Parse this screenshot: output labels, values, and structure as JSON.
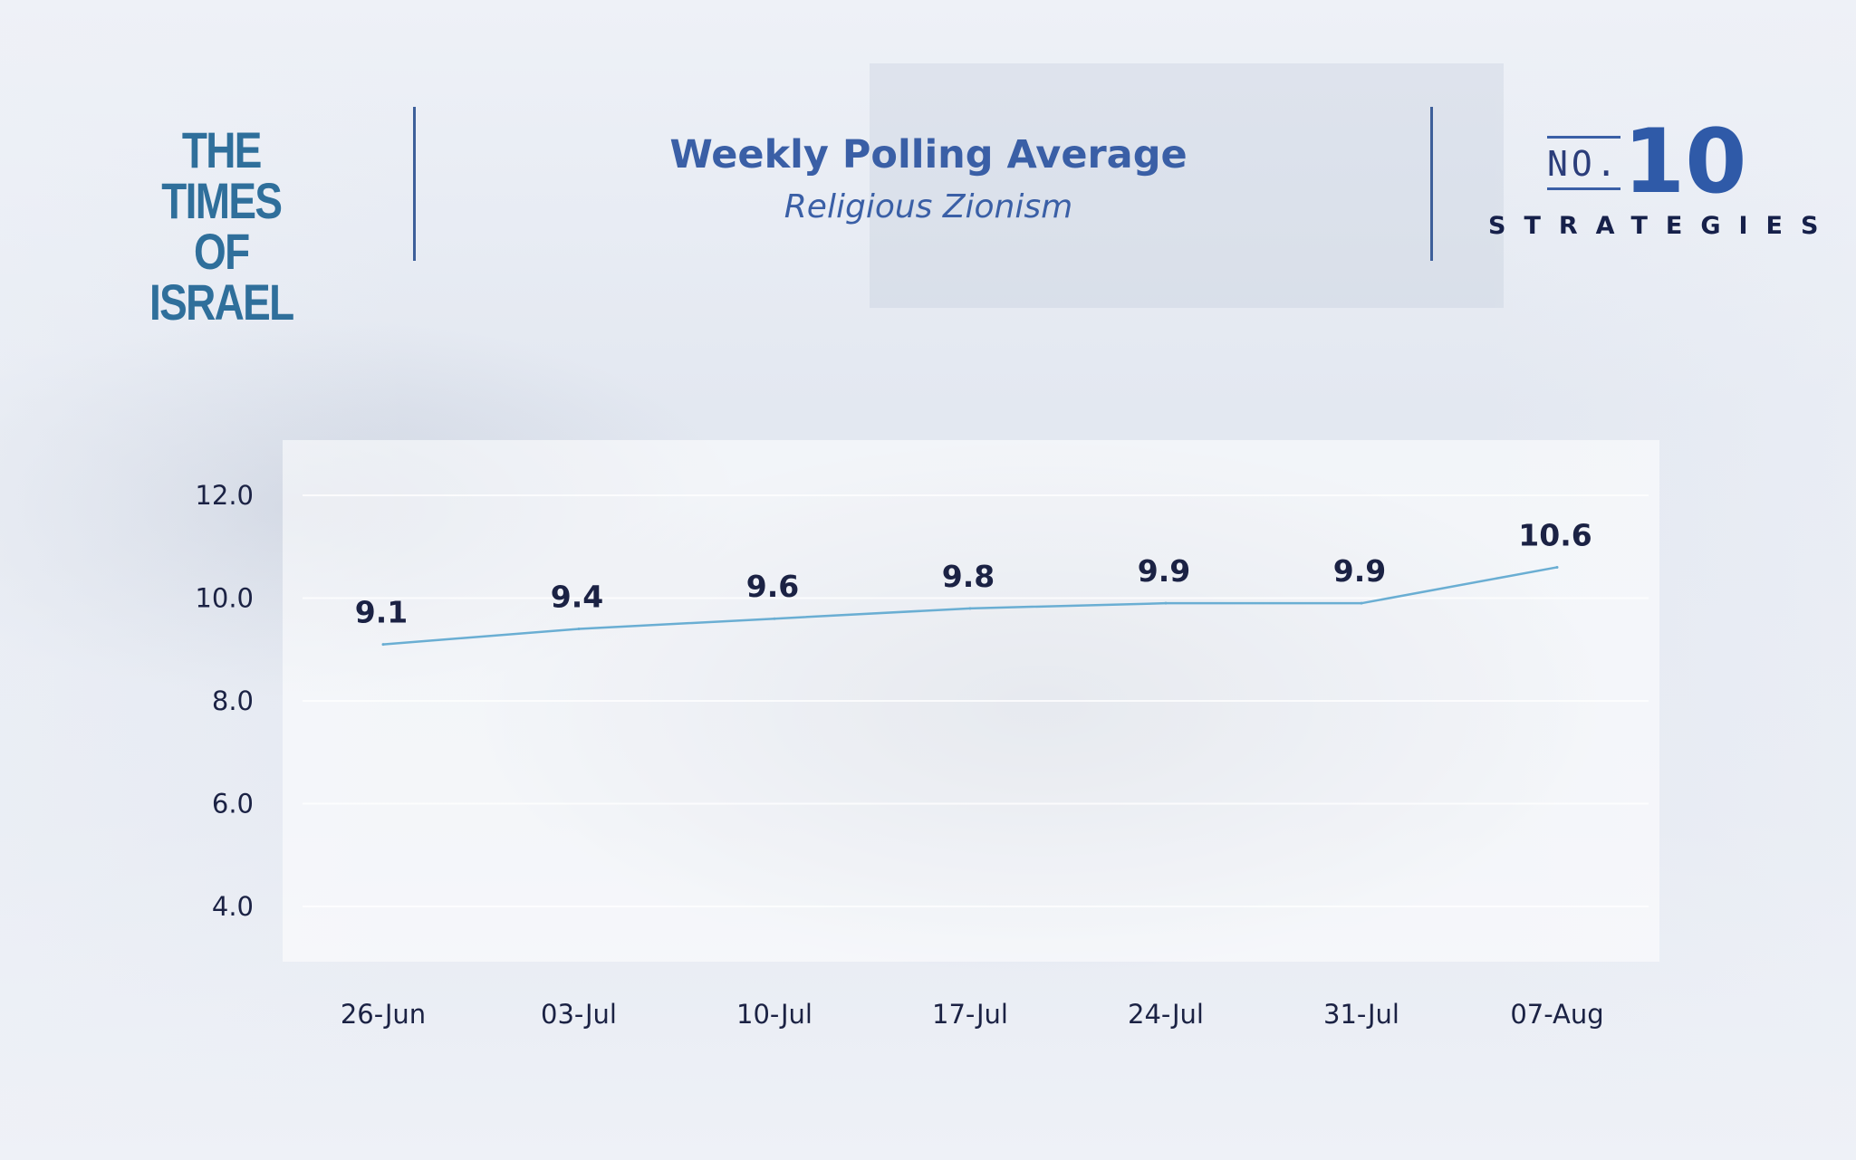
{
  "header": {
    "left_logo": [
      "THE TIMES",
      "OF ISRAEL"
    ],
    "title": "Weekly Polling Average",
    "subtitle": "Religious Zionism",
    "right_logo": {
      "prefix": "NO.",
      "number": "10",
      "word": "STRATEGIES"
    }
  },
  "colors": {
    "line": "#6aaed3",
    "title": "#3a5fa6",
    "text": "#1b2244"
  },
  "chart_data": {
    "type": "line",
    "categories": [
      "26-Jun",
      "03-Jul",
      "10-Jul",
      "17-Jul",
      "24-Jul",
      "31-Jul",
      "07-Aug"
    ],
    "series": [
      {
        "values": [
          9.1,
          9.4,
          9.6,
          9.8,
          9.9,
          9.9,
          10.6
        ]
      }
    ],
    "data_labels": [
      "9.1",
      "9.4",
      "9.6",
      "9.8",
      "9.9",
      "9.9",
      "10.6"
    ],
    "y_ticks": [
      "12.0",
      "10.0",
      "8.0",
      "6.0",
      "4.0"
    ],
    "ylim": [
      3,
      13
    ],
    "grid": true,
    "legend": "none"
  }
}
